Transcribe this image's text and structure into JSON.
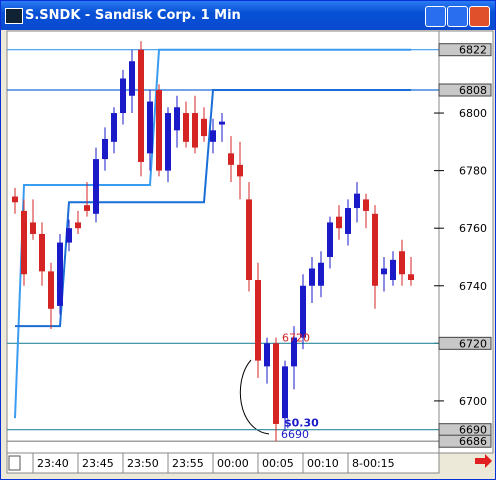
{
  "chart_data": {
    "type": "candlestick",
    "title": "S.SNDK - Sandisk Corp. 1 Min",
    "categories": [
      null,
      null,
      "23:40",
      null,
      null,
      null,
      null,
      "23:45",
      null,
      null,
      null,
      null,
      "23:50",
      null,
      null,
      null,
      null,
      "23:55",
      null,
      null,
      null,
      null,
      "00:00",
      null,
      null,
      null,
      null,
      "00:05",
      null,
      null,
      null,
      null,
      "00:10",
      null,
      null,
      null,
      null,
      "8-00:15",
      null,
      null,
      null,
      null,
      null,
      null,
      null
    ],
    "open": [
      6771,
      6766,
      6762,
      6758,
      6745,
      6733,
      6755,
      6762,
      6768,
      6765,
      6784,
      6790,
      6800,
      6806,
      6822,
      6786,
      6808,
      6780,
      6794,
      6800,
      6800,
      6798,
      6790,
      6796,
      6786,
      6782,
      6770,
      6742,
      6712,
      6720,
      6694,
      6712,
      6722,
      6740,
      6740,
      6750,
      6764,
      6758,
      6767,
      6770,
      6765,
      6744,
      6742,
      6752,
      6744
    ],
    "high": [
      6774,
      6770,
      6770,
      6762,
      6748,
      6758,
      6763,
      6766,
      6776,
      6788,
      6795,
      6802,
      6815,
      6822,
      6825,
      6808,
      6810,
      6802,
      6806,
      6804,
      6806,
      6802,
      6798,
      6800,
      6792,
      6790,
      6776,
      6748,
      6722,
      6722,
      6714,
      6726,
      6744,
      6750,
      6752,
      6764,
      6768,
      6770,
      6776,
      6772,
      6768,
      6750,
      6752,
      6756,
      6750
    ],
    "low": [
      6765,
      6740,
      6756,
      6740,
      6725,
      6730,
      6752,
      6758,
      6764,
      6762,
      6780,
      6786,
      6796,
      6800,
      6778,
      6780,
      6778,
      6776,
      6788,
      6788,
      6786,
      6790,
      6786,
      6790,
      6776,
      6770,
      6738,
      6708,
      6706,
      6686,
      6690,
      6704,
      6718,
      6734,
      6736,
      6746,
      6756,
      6754,
      6762,
      6760,
      6732,
      6738,
      6740,
      6740,
      6740
    ],
    "close": [
      6769,
      6744,
      6758,
      6745,
      6732,
      6755,
      6760,
      6760,
      6766,
      6784,
      6791,
      6800,
      6812,
      6818,
      6783,
      6804,
      6780,
      6800,
      6802,
      6790,
      6788,
      6792,
      6794,
      6797,
      6782,
      6778,
      6742,
      6714,
      6720,
      6692,
      6712,
      6722,
      6740,
      6746,
      6748,
      6762,
      6760,
      6767,
      6772,
      6766,
      6740,
      6746,
      6749,
      6744,
      6742
    ],
    "up_color": "#1a1ac8",
    "down_color": "#d42424",
    "overlays": [
      {
        "color": "#3a9cf0",
        "values": [
          6694,
          6775,
          6775,
          6775,
          6775,
          6775,
          6775,
          6775,
          6775,
          6775,
          6775,
          6775,
          6775,
          6775,
          6775,
          6775,
          6822,
          6822,
          6822,
          6822,
          6822,
          6822,
          6822,
          6822,
          6822,
          6822,
          6822,
          6822,
          6822,
          6822,
          6822,
          6822,
          6822,
          6822,
          6822,
          6822,
          6822,
          6822,
          6822,
          6822,
          6822,
          6822,
          6822,
          6822,
          6822
        ]
      },
      {
        "color": "#1a6ed8",
        "values": [
          6726,
          6726,
          6726,
          6726,
          6726,
          6726,
          6769,
          6769,
          6769,
          6769,
          6769,
          6769,
          6769,
          6769,
          6769,
          6769,
          6769,
          6769,
          6769,
          6769,
          6769,
          6769,
          6808,
          6808,
          6808,
          6808,
          6808,
          6808,
          6808,
          6808,
          6808,
          6808,
          6808,
          6808,
          6808,
          6808,
          6808,
          6808,
          6808,
          6808,
          6808,
          6808,
          6808,
          6808,
          6808
        ]
      }
    ],
    "price_markers": [
      {
        "value": 6822,
        "color": "#3a9cf0"
      },
      {
        "value": 6808,
        "color": "#1a6ed8"
      },
      {
        "value": 6720,
        "color": "#2a8c9c"
      },
      {
        "value": 6690,
        "color": "#2a8c9c"
      },
      {
        "value": 6686,
        "color": "#808080"
      }
    ],
    "annotations": [
      "6720",
      "$0.30",
      "6690"
    ],
    "ylim": [
      6682.6,
      6828.5
    ],
    "yticks": [
      6700,
      6720,
      6740,
      6760,
      6780,
      6800
    ]
  }
}
